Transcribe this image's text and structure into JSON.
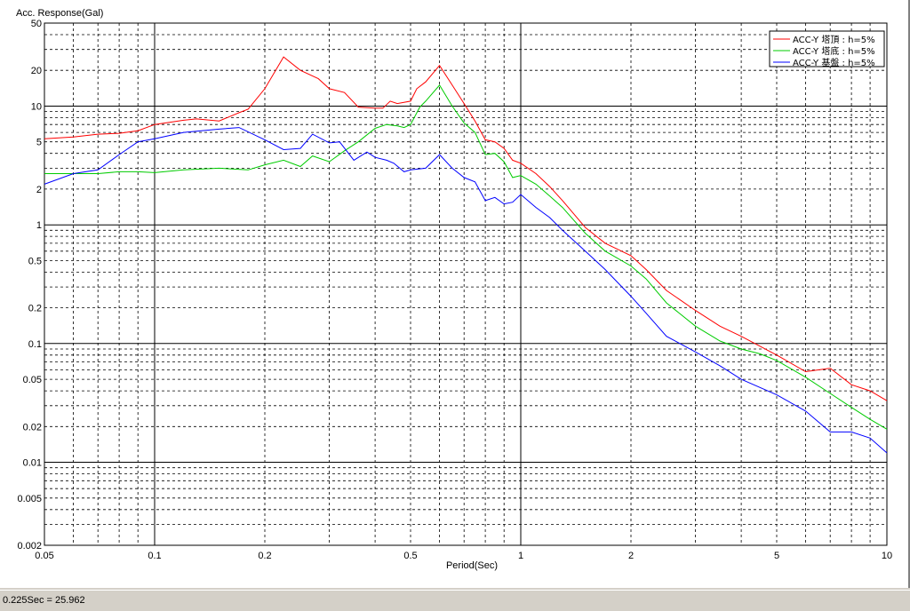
{
  "status": {
    "text": "0.225Sec = 25.962"
  },
  "chart_data": {
    "type": "line",
    "ylabel": "Acc. Response(Gal)",
    "xlabel": "Period(Sec)",
    "xscale": "log",
    "yscale": "log",
    "xlim": [
      0.05,
      10
    ],
    "ylim": [
      0.002,
      50
    ],
    "grid": true,
    "legend": "top-right",
    "x_tick_labels": [
      "0.05",
      "0.1",
      "0.2",
      "0.5",
      "1",
      "2",
      "5",
      "10"
    ],
    "y_tick_labels": [
      "50",
      "20",
      "10",
      "5",
      "2",
      "1",
      "0.5",
      "0.2",
      "0.1",
      "0.05",
      "0.02",
      "0.01",
      "0.005",
      "0.002"
    ],
    "series": [
      {
        "name": "ACC-Y 塔頂 : h=5%",
        "color": "#ff0000",
        "points": [
          [
            0.05,
            5.3
          ],
          [
            0.06,
            5.5
          ],
          [
            0.07,
            5.8
          ],
          [
            0.08,
            5.9
          ],
          [
            0.09,
            6.2
          ],
          [
            0.1,
            7.0
          ],
          [
            0.12,
            7.6
          ],
          [
            0.13,
            7.8
          ],
          [
            0.15,
            7.5
          ],
          [
            0.17,
            8.8
          ],
          [
            0.18,
            9.4
          ],
          [
            0.2,
            14
          ],
          [
            0.225,
            25.962
          ],
          [
            0.25,
            20
          ],
          [
            0.28,
            17
          ],
          [
            0.3,
            14
          ],
          [
            0.33,
            13
          ],
          [
            0.36,
            9.8
          ],
          [
            0.4,
            9.6
          ],
          [
            0.42,
            9.6
          ],
          [
            0.44,
            11
          ],
          [
            0.46,
            10.5
          ],
          [
            0.5,
            11
          ],
          [
            0.52,
            14
          ],
          [
            0.55,
            16
          ],
          [
            0.6,
            22
          ],
          [
            0.65,
            15
          ],
          [
            0.7,
            10.5
          ],
          [
            0.75,
            7.5
          ],
          [
            0.8,
            5.2
          ],
          [
            0.85,
            5.0
          ],
          [
            0.9,
            4.4
          ],
          [
            0.95,
            3.5
          ],
          [
            1.0,
            3.3
          ],
          [
            1.1,
            2.7
          ],
          [
            1.2,
            2.1
          ],
          [
            1.3,
            1.6
          ],
          [
            1.5,
            0.95
          ],
          [
            1.7,
            0.7
          ],
          [
            2.0,
            0.55
          ],
          [
            2.2,
            0.42
          ],
          [
            2.5,
            0.28
          ],
          [
            3.0,
            0.19
          ],
          [
            3.5,
            0.14
          ],
          [
            4.0,
            0.115
          ],
          [
            4.5,
            0.095
          ],
          [
            5.0,
            0.08
          ],
          [
            6.0,
            0.058
          ],
          [
            7.0,
            0.062
          ],
          [
            8.0,
            0.045
          ],
          [
            9.0,
            0.04
          ],
          [
            10.0,
            0.033
          ]
        ]
      },
      {
        "name": "ACC-Y 塔底 : h=5%",
        "color": "#00cc00",
        "points": [
          [
            0.05,
            2.7
          ],
          [
            0.06,
            2.7
          ],
          [
            0.07,
            2.7
          ],
          [
            0.08,
            2.8
          ],
          [
            0.09,
            2.8
          ],
          [
            0.1,
            2.75
          ],
          [
            0.12,
            2.9
          ],
          [
            0.15,
            3.0
          ],
          [
            0.18,
            2.9
          ],
          [
            0.2,
            3.2
          ],
          [
            0.225,
            3.5
          ],
          [
            0.25,
            3.1
          ],
          [
            0.27,
            3.8
          ],
          [
            0.3,
            3.4
          ],
          [
            0.33,
            4.2
          ],
          [
            0.36,
            5.0
          ],
          [
            0.4,
            6.5
          ],
          [
            0.43,
            7.0
          ],
          [
            0.46,
            6.8
          ],
          [
            0.48,
            6.6
          ],
          [
            0.5,
            7.0
          ],
          [
            0.53,
            9.8
          ],
          [
            0.55,
            11
          ],
          [
            0.6,
            15
          ],
          [
            0.65,
            10
          ],
          [
            0.7,
            7.2
          ],
          [
            0.75,
            6.0
          ],
          [
            0.8,
            3.9
          ],
          [
            0.85,
            4.0
          ],
          [
            0.9,
            3.4
          ],
          [
            0.95,
            2.5
          ],
          [
            1.0,
            2.6
          ],
          [
            1.1,
            2.2
          ],
          [
            1.2,
            1.75
          ],
          [
            1.3,
            1.4
          ],
          [
            1.5,
            0.85
          ],
          [
            1.7,
            0.6
          ],
          [
            2.0,
            0.45
          ],
          [
            2.2,
            0.35
          ],
          [
            2.5,
            0.22
          ],
          [
            3.0,
            0.14
          ],
          [
            3.5,
            0.105
          ],
          [
            4.0,
            0.09
          ],
          [
            4.5,
            0.082
          ],
          [
            5.0,
            0.072
          ],
          [
            6.0,
            0.052
          ],
          [
            7.0,
            0.038
          ],
          [
            8.0,
            0.029
          ],
          [
            9.0,
            0.023
          ],
          [
            10.0,
            0.019
          ]
        ]
      },
      {
        "name": "ACC-Y 基盤 : h=5%",
        "color": "#0000ff",
        "points": [
          [
            0.05,
            2.2
          ],
          [
            0.06,
            2.7
          ],
          [
            0.07,
            2.9
          ],
          [
            0.08,
            3.9
          ],
          [
            0.09,
            5.0
          ],
          [
            0.1,
            5.3
          ],
          [
            0.12,
            6.0
          ],
          [
            0.15,
            6.4
          ],
          [
            0.17,
            6.6
          ],
          [
            0.2,
            5.2
          ],
          [
            0.225,
            4.3
          ],
          [
            0.25,
            4.4
          ],
          [
            0.27,
            5.8
          ],
          [
            0.3,
            4.9
          ],
          [
            0.32,
            5.0
          ],
          [
            0.35,
            3.5
          ],
          [
            0.38,
            4.1
          ],
          [
            0.4,
            3.7
          ],
          [
            0.43,
            3.5
          ],
          [
            0.45,
            3.3
          ],
          [
            0.48,
            2.8
          ],
          [
            0.5,
            2.9
          ],
          [
            0.55,
            3.0
          ],
          [
            0.6,
            3.9
          ],
          [
            0.65,
            3.0
          ],
          [
            0.7,
            2.5
          ],
          [
            0.75,
            2.3
          ],
          [
            0.8,
            1.6
          ],
          [
            0.85,
            1.7
          ],
          [
            0.9,
            1.5
          ],
          [
            0.95,
            1.55
          ],
          [
            1.0,
            1.8
          ],
          [
            1.1,
            1.4
          ],
          [
            1.2,
            1.15
          ],
          [
            1.3,
            0.9
          ],
          [
            1.5,
            0.6
          ],
          [
            1.7,
            0.42
          ],
          [
            2.0,
            0.25
          ],
          [
            2.2,
            0.18
          ],
          [
            2.5,
            0.115
          ],
          [
            3.0,
            0.085
          ],
          [
            3.5,
            0.065
          ],
          [
            4.0,
            0.05
          ],
          [
            5.0,
            0.037
          ],
          [
            6.0,
            0.027
          ],
          [
            7.0,
            0.018
          ],
          [
            8.0,
            0.018
          ],
          [
            9.0,
            0.016
          ],
          [
            10.0,
            0.012
          ]
        ]
      }
    ]
  }
}
